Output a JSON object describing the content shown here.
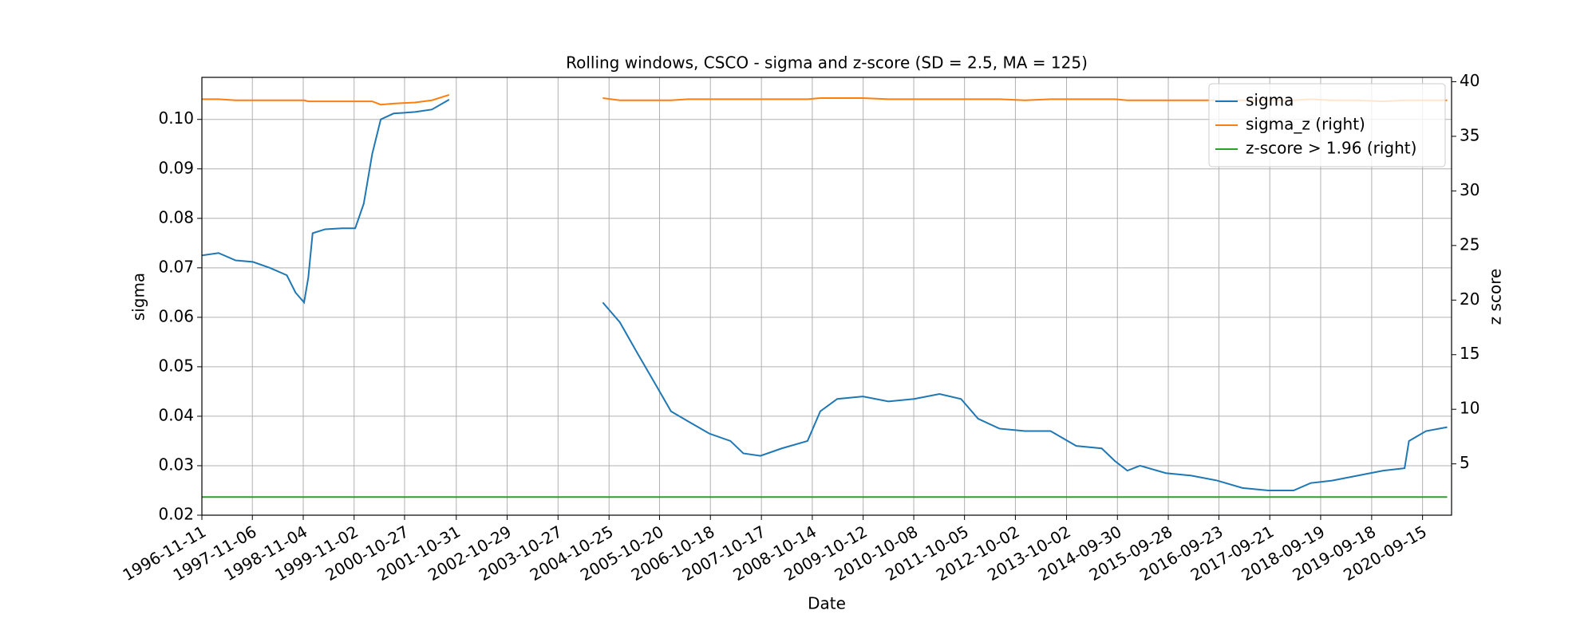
{
  "chart_data": {
    "type": "line",
    "title": "Rolling windows, CSCO - sigma and z-score (SD = 2.5, MA = 125)",
    "x_label": "Date",
    "y_label": "sigma",
    "y2_label": "z score",
    "x": [
      "1996-11-11",
      "1997-03-10",
      "1997-07-10",
      "1997-11-10",
      "1998-03-10",
      "1998-07-10",
      "1998-09-10",
      "1998-11-10",
      "1998-12-10",
      "1999-01-10",
      "1999-04-10",
      "1999-08-10",
      "1999-11-10",
      "2000-01-10",
      "2000-03-10",
      "2000-05-10",
      "2000-08-10",
      "2001-01-10",
      "2001-05-10",
      "2001-09-10",
      "2003-01-10",
      "2004-09-10",
      "2005-01-10",
      "2005-05-10",
      "2005-09-10",
      "2006-01-10",
      "2006-05-10",
      "2006-10-10",
      "2007-03-10",
      "2007-06-10",
      "2007-10-10",
      "2008-03-10",
      "2008-09-10",
      "2008-12-10",
      "2009-04-10",
      "2009-10-10",
      "2010-04-10",
      "2010-10-10",
      "2011-04-10",
      "2011-09-10",
      "2012-01-10",
      "2012-06-10",
      "2012-12-10",
      "2013-06-10",
      "2013-12-10",
      "2014-06-10",
      "2014-09-10",
      "2014-12-10",
      "2015-03-10",
      "2015-09-10",
      "2016-03-10",
      "2016-09-10",
      "2017-03-10",
      "2017-09-10",
      "2018-03-10",
      "2018-07-10",
      "2018-12-10",
      "2019-06-10",
      "2019-12-10",
      "2020-05-10",
      "2020-06-10",
      "2020-10-10",
      "2021-03-10"
    ],
    "series": [
      {
        "name": "sigma",
        "color": "#1f77b4",
        "axis": "y",
        "values": [
          0.0725,
          0.073,
          0.0715,
          0.0712,
          0.07,
          0.0685,
          0.065,
          0.063,
          0.068,
          0.077,
          0.0778,
          0.078,
          0.078,
          0.083,
          0.093,
          0.1,
          0.1012,
          0.1015,
          0.102,
          0.104,
          null,
          0.063,
          0.059,
          0.053,
          0.047,
          0.041,
          0.039,
          0.0365,
          0.035,
          0.0325,
          0.032,
          0.0335,
          0.035,
          0.041,
          0.0435,
          0.044,
          0.043,
          0.0435,
          0.0445,
          0.0435,
          0.0395,
          0.0375,
          0.037,
          0.037,
          0.034,
          0.0335,
          0.031,
          0.029,
          0.03,
          0.0285,
          0.028,
          0.027,
          0.0255,
          0.025,
          0.025,
          0.0265,
          0.027,
          0.028,
          0.029,
          0.0295,
          0.035,
          0.037,
          0.0378
        ]
      },
      {
        "name": "sigma_z (right)",
        "color": "#ff7f0e",
        "axis": "y2",
        "values": [
          38.4,
          38.4,
          38.3,
          38.3,
          38.3,
          38.3,
          38.3,
          38.3,
          38.2,
          38.2,
          38.2,
          38.2,
          38.2,
          38.2,
          38.2,
          37.9,
          38.0,
          38.1,
          38.3,
          38.8,
          null,
          38.5,
          38.3,
          38.3,
          38.3,
          38.3,
          38.4,
          38.4,
          38.4,
          38.4,
          38.4,
          38.4,
          38.4,
          38.5,
          38.5,
          38.5,
          38.4,
          38.4,
          38.4,
          38.4,
          38.4,
          38.4,
          38.3,
          38.4,
          38.4,
          38.4,
          38.4,
          38.3,
          38.3,
          38.3,
          38.3,
          38.3,
          38.3,
          38.3,
          38.3,
          38.4,
          38.3,
          38.3,
          38.2,
          38.3,
          38.3,
          38.3,
          38.3
        ]
      },
      {
        "name": "z-score > 1.96 (right)",
        "color": "#2ca02c",
        "axis": "y2",
        "values": [
          1.96,
          1.96,
          1.96,
          1.96,
          1.96,
          1.96,
          1.96,
          1.96,
          1.96,
          1.96,
          1.96,
          1.96,
          1.96,
          1.96,
          1.96,
          1.96,
          1.96,
          1.96,
          1.96,
          1.96,
          1.96,
          1.96,
          1.96,
          1.96,
          1.96,
          1.96,
          1.96,
          1.96,
          1.96,
          1.96,
          1.96,
          1.96,
          1.96,
          1.96,
          1.96,
          1.96,
          1.96,
          1.96,
          1.96,
          1.96,
          1.96,
          1.96,
          1.96,
          1.96,
          1.96,
          1.96,
          1.96,
          1.96,
          1.96,
          1.96,
          1.96,
          1.96,
          1.96,
          1.96,
          1.96,
          1.96,
          1.96,
          1.96,
          1.96,
          1.96,
          1.96,
          1.96,
          1.96
        ]
      }
    ],
    "xlim": [
      "1996-11-11",
      "2021-04-10"
    ],
    "xticks": [
      "1996-11-11",
      "1997-11-06",
      "1998-11-04",
      "1999-11-02",
      "2000-10-27",
      "2001-10-31",
      "2002-10-29",
      "2003-10-27",
      "2004-10-25",
      "2005-10-20",
      "2006-10-18",
      "2007-10-17",
      "2008-10-14",
      "2009-10-12",
      "2010-10-08",
      "2011-10-05",
      "2012-10-02",
      "2013-10-02",
      "2014-09-30",
      "2015-09-28",
      "2016-09-23",
      "2017-09-21",
      "2018-09-19",
      "2019-09-18",
      "2020-09-15"
    ],
    "ylim": [
      0.02,
      0.1085
    ],
    "yticks": [
      0.02,
      0.03,
      0.04,
      0.05,
      0.06,
      0.07,
      0.08,
      0.09,
      {
        "value": 0.1,
        "label": "0.10"
      }
    ],
    "y2lim": [
      0.3,
      40.4
    ],
    "y2ticks": [
      5,
      10,
      15,
      20,
      25,
      30,
      35,
      40
    ],
    "grid": true,
    "legend": "upper right"
  }
}
